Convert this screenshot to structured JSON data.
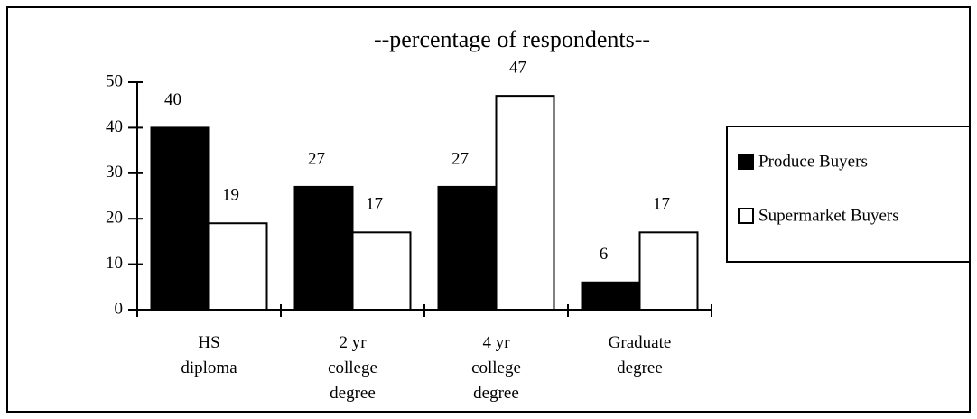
{
  "chart_data": {
    "type": "bar",
    "title": "--percentage of respondents--",
    "categories": [
      "HS\ndiploma",
      "2 yr\ncollege\ndegree",
      "4 yr\ncollege\ndegree",
      "Graduate\ndegree"
    ],
    "series": [
      {
        "name": "Produce Buyers",
        "color": "#000000",
        "values": [
          40,
          27,
          27,
          6
        ]
      },
      {
        "name": "Supermarket Buyers",
        "color": "#ffffff",
        "values": [
          19,
          17,
          47,
          17
        ]
      }
    ],
    "ylim": [
      0,
      50
    ],
    "yticks": [
      0,
      10,
      20,
      30,
      40,
      50
    ],
    "legend": "right"
  }
}
